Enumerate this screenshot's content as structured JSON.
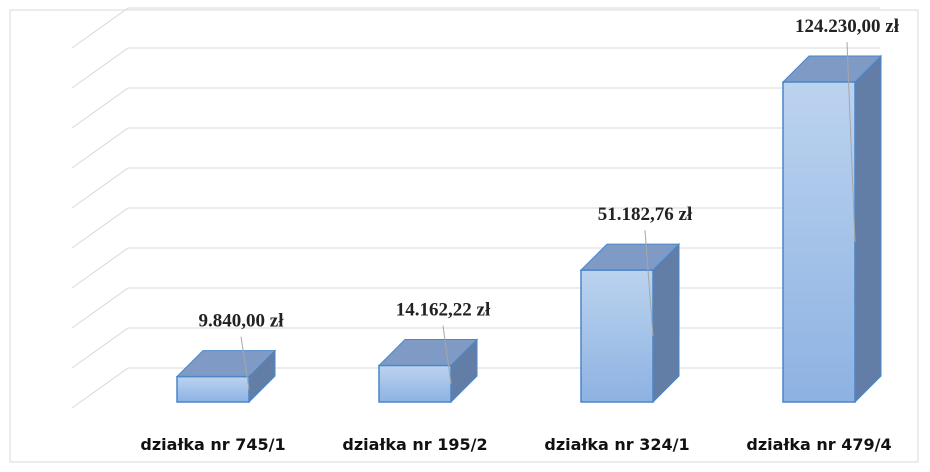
{
  "chart_data": {
    "type": "bar3d",
    "categories": [
      "działka nr 745/1",
      "działka nr 195/2",
      "działka nr 324/1",
      "działka nr 479/4"
    ],
    "values": [
      9840,
      14162.22,
      51182.76,
      124230
    ],
    "value_labels": [
      "9.840,00 zł",
      "14.162,22 zł",
      "51.182,76 zł",
      "124.230,00 zł"
    ],
    "color": "#9dbde8",
    "ylim": [
      0,
      135000
    ],
    "yticks": [
      0,
      15000,
      30000,
      45000,
      60000,
      75000,
      90000,
      105000,
      120000,
      135000
    ],
    "grid": true
  }
}
